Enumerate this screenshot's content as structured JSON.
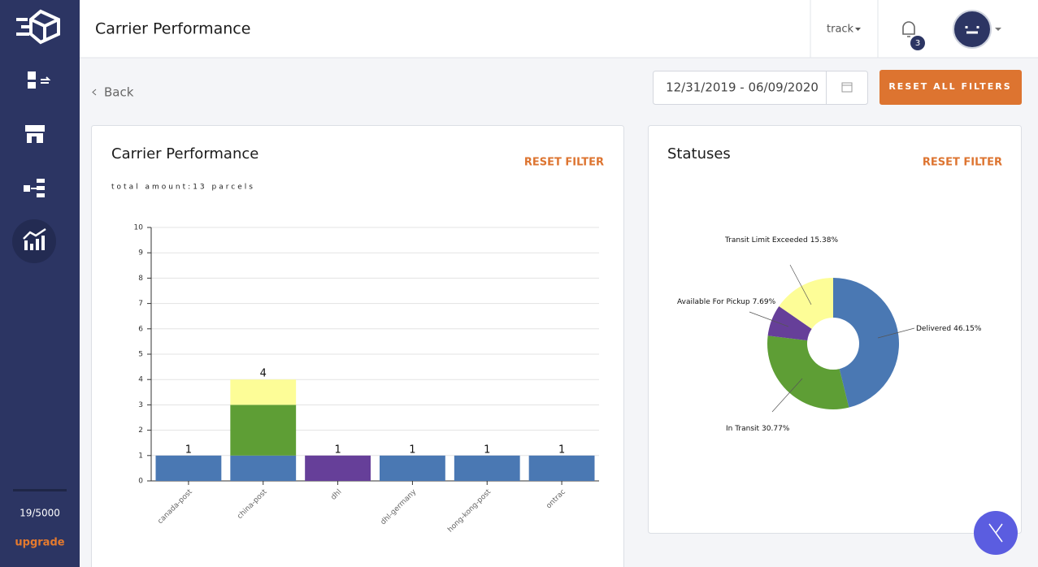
{
  "header": {
    "title": "Carrier Performance",
    "menu": "track",
    "notifications": 3
  },
  "nav": {
    "back": "Back"
  },
  "filters": {
    "date_range": "12/31/2019 - 06/09/2020",
    "reset_all": "RESET ALL FILTERS"
  },
  "cards": [
    {
      "reset": "RESET FILTER"
    },
    {
      "reset": "RESET FILTER"
    }
  ],
  "sidebar": {
    "usage": "19/5000",
    "upgrade": "upgrade"
  },
  "chart_data": [
    {
      "type": "bar",
      "title": "Carrier Performance",
      "subtitle": "total amount:13 parcels",
      "categories": [
        "canada-post",
        "china-post",
        "dhl",
        "dhl-germany",
        "hong-kong-post",
        "ontrac"
      ],
      "series": [
        {
          "color": "#4a78b3",
          "values": [
            1,
            1,
            0,
            1,
            1,
            1
          ]
        },
        {
          "color": "#5e9e35",
          "values": [
            0,
            2,
            0,
            0,
            0,
            0
          ]
        },
        {
          "color": "#fdfd97",
          "values": [
            0,
            1,
            0,
            0,
            0,
            0
          ]
        },
        {
          "color": "#663f99",
          "values": [
            0,
            0,
            1,
            0,
            0,
            0
          ]
        }
      ],
      "totals": [
        1,
        4,
        1,
        1,
        1,
        1
      ],
      "ylim": [
        0,
        10
      ],
      "yticks": [
        0,
        1,
        2,
        3,
        4,
        5,
        6,
        7,
        8,
        9,
        10
      ],
      "grid": true
    },
    {
      "type": "pie",
      "title": "Statuses",
      "categories": [
        "Delivered",
        "In Transit",
        "Available For Pickup",
        "Transit Limit Exceeded"
      ],
      "values": [
        46.15,
        30.77,
        7.69,
        15.38
      ],
      "value_labels": [
        "46.15%",
        "30.77%",
        "7.69%",
        "15.38%"
      ],
      "colors": [
        "#4a78b3",
        "#5e9e35",
        "#663f99",
        "#fdfd97"
      ],
      "donut": true
    }
  ]
}
